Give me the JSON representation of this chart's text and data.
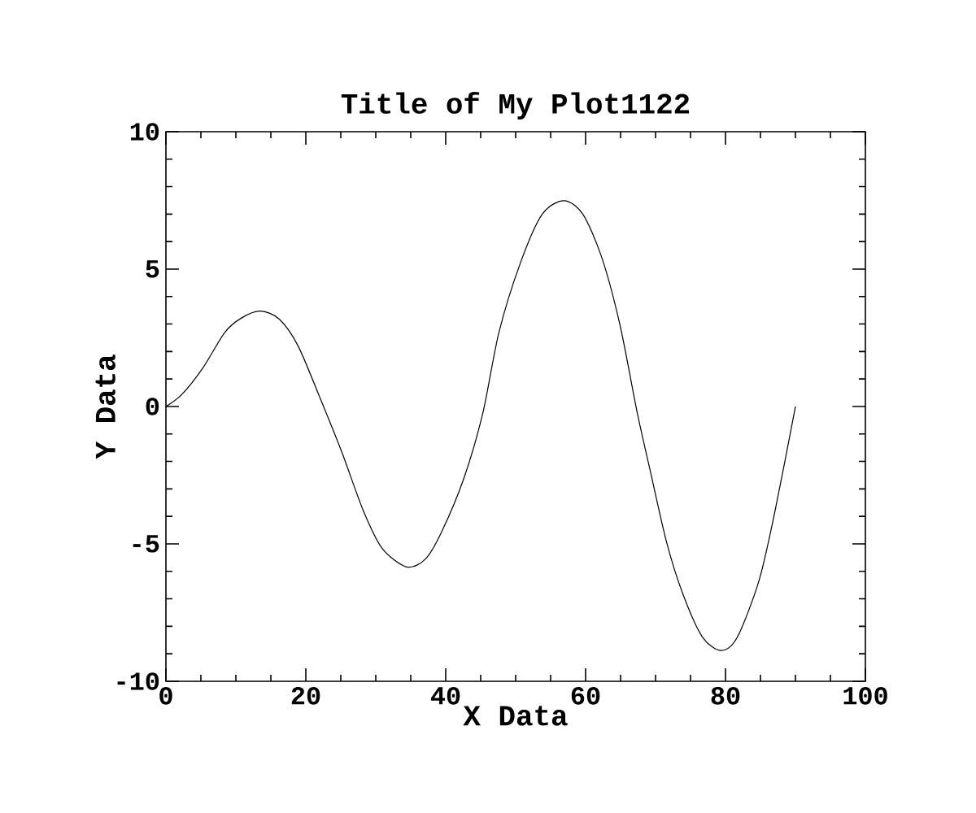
{
  "chart_data": {
    "type": "line",
    "title": "Title of My Plot1122",
    "xlabel": "X Data",
    "ylabel": "Y Data",
    "x": [
      0,
      2.25,
      5.3,
      8.4,
      10.8,
      13.5,
      16.2,
      18.9,
      22.0,
      25.1,
      28.2,
      30.9,
      34.4,
      37.1,
      39.4,
      42.6,
      45.3,
      47.6,
      50.7,
      53.8,
      56.9,
      59.6,
      62.3,
      64.9,
      67.4,
      69.3,
      71.6,
      73.9,
      76.7,
      79.4,
      81.7,
      84.8,
      87.1,
      90
    ],
    "series": [
      {
        "color": "#000000",
        "values": [
          0,
          0.43,
          1.41,
          2.69,
          3.22,
          3.47,
          3.18,
          2.2,
          0.33,
          -1.63,
          -3.78,
          -5.16,
          -5.84,
          -5.55,
          -4.57,
          -2.61,
          -0.25,
          2.69,
          5.24,
          7.0,
          7.49,
          7.0,
          5.43,
          2.98,
          -0.25,
          -2.41,
          -4.96,
          -6.82,
          -8.39,
          -8.88,
          -8.39,
          -6.33,
          -3.78,
          0
        ]
      }
    ],
    "xlim": [
      0,
      100
    ],
    "ylim": [
      -10,
      10
    ],
    "xticks": [
      0,
      20,
      40,
      60,
      80,
      100
    ],
    "yticks": [
      -10,
      -5,
      0,
      5,
      10
    ],
    "grid": false,
    "marker": "none",
    "line_style": "solid"
  }
}
